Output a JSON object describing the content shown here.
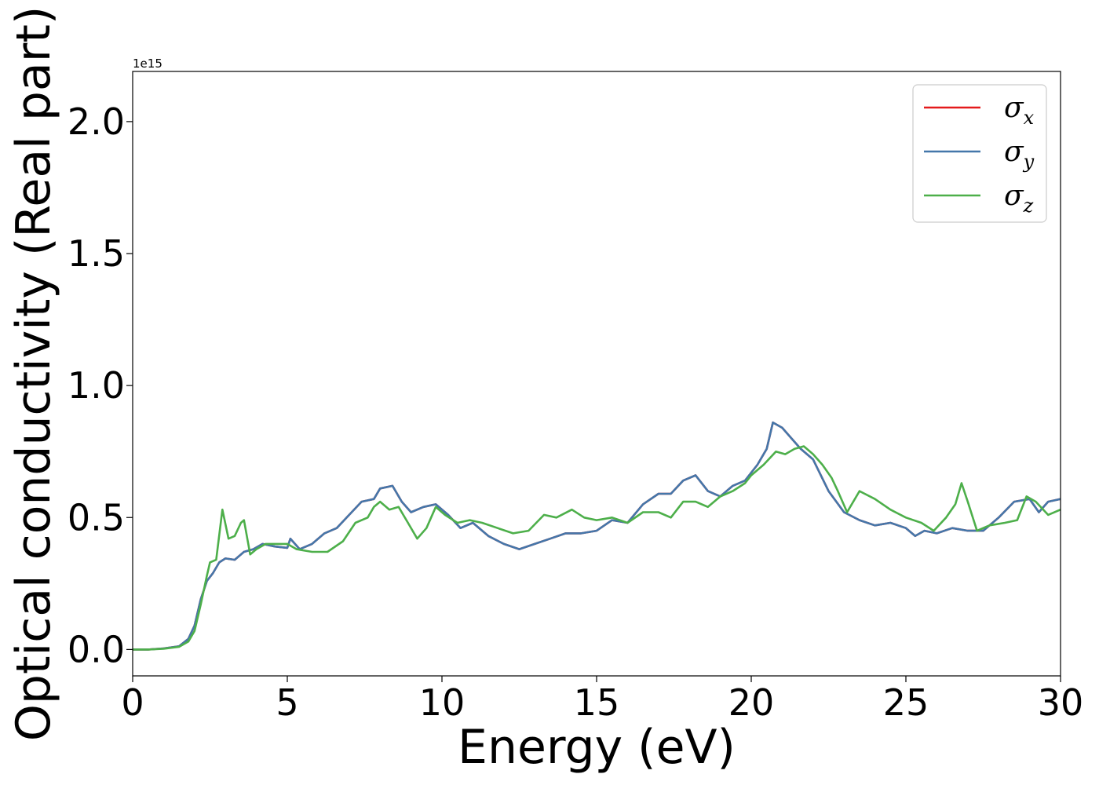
{
  "chart_data": {
    "type": "line",
    "xlabel": "Energy (eV)",
    "ylabel": "Optical conductivity (Real part)",
    "offset_text": "1e15",
    "xlim": [
      0,
      30
    ],
    "ylim": [
      -0.1,
      2.19
    ],
    "xticks": [
      0,
      5,
      10,
      15,
      20,
      25,
      30
    ],
    "xtick_labels": [
      "0",
      "5",
      "10",
      "15",
      "20",
      "25",
      "30"
    ],
    "yticks": [
      0.0,
      0.5,
      1.0,
      1.5,
      2.0
    ],
    "ytick_labels": [
      "0.0",
      "0.5",
      "1.0",
      "1.5",
      "2.0"
    ],
    "grid": false,
    "legend_position": "top-right",
    "series": [
      {
        "name": "σx",
        "symbol": "σ",
        "subscript": "x",
        "color": "#e41a1c",
        "x": [
          0,
          0.5,
          1.0,
          1.5,
          1.8,
          2.0,
          2.2,
          2.4,
          2.6,
          2.8,
          3.0,
          3.3,
          3.6,
          3.9,
          4.2,
          4.6,
          5.0,
          5.1,
          5.4,
          5.8,
          6.2,
          6.6,
          7.0,
          7.4,
          7.8,
          8.0,
          8.4,
          8.7,
          9.0,
          9.4,
          9.8,
          10.2,
          10.6,
          11.0,
          11.5,
          12.0,
          12.5,
          13.0,
          13.5,
          14.0,
          14.5,
          15.0,
          15.5,
          16.0,
          16.5,
          17.0,
          17.4,
          17.8,
          18.2,
          18.6,
          19.0,
          19.4,
          19.8,
          20.2,
          20.5,
          20.7,
          21.0,
          21.3,
          21.6,
          22.0,
          22.5,
          23.0,
          23.5,
          24.0,
          24.5,
          25.0,
          25.3,
          25.6,
          26.0,
          26.5,
          27.0,
          27.5,
          28.0,
          28.5,
          29.0,
          29.3,
          29.6,
          30.0
        ],
        "y": [
          0.0,
          0.0,
          0.004,
          0.012,
          0.04,
          0.09,
          0.19,
          0.26,
          0.29,
          0.33,
          0.345,
          0.34,
          0.37,
          0.38,
          0.4,
          0.39,
          0.385,
          0.42,
          0.38,
          0.4,
          0.44,
          0.46,
          0.51,
          0.56,
          0.57,
          0.61,
          0.62,
          0.56,
          0.52,
          0.54,
          0.55,
          0.51,
          0.46,
          0.48,
          0.43,
          0.4,
          0.38,
          0.4,
          0.42,
          0.44,
          0.44,
          0.45,
          0.49,
          0.48,
          0.55,
          0.59,
          0.59,
          0.64,
          0.66,
          0.6,
          0.58,
          0.62,
          0.64,
          0.7,
          0.76,
          0.86,
          0.84,
          0.8,
          0.76,
          0.72,
          0.6,
          0.52,
          0.49,
          0.47,
          0.48,
          0.46,
          0.43,
          0.45,
          0.44,
          0.46,
          0.45,
          0.45,
          0.5,
          0.56,
          0.57,
          0.52,
          0.56,
          0.57
        ]
      },
      {
        "name": "σy",
        "symbol": "σ",
        "subscript": "y",
        "color": "#4477aa",
        "x": [
          0,
          0.5,
          1.0,
          1.5,
          1.8,
          2.0,
          2.2,
          2.4,
          2.6,
          2.8,
          3.0,
          3.3,
          3.6,
          3.9,
          4.2,
          4.6,
          5.0,
          5.1,
          5.4,
          5.8,
          6.2,
          6.6,
          7.0,
          7.4,
          7.8,
          8.0,
          8.4,
          8.7,
          9.0,
          9.4,
          9.8,
          10.2,
          10.6,
          11.0,
          11.5,
          12.0,
          12.5,
          13.0,
          13.5,
          14.0,
          14.5,
          15.0,
          15.5,
          16.0,
          16.5,
          17.0,
          17.4,
          17.8,
          18.2,
          18.6,
          19.0,
          19.4,
          19.8,
          20.2,
          20.5,
          20.7,
          21.0,
          21.3,
          21.6,
          22.0,
          22.5,
          23.0,
          23.5,
          24.0,
          24.5,
          25.0,
          25.3,
          25.6,
          26.0,
          26.5,
          27.0,
          27.5,
          28.0,
          28.5,
          29.0,
          29.3,
          29.6,
          30.0
        ],
        "y": [
          0.0,
          0.0,
          0.004,
          0.012,
          0.04,
          0.09,
          0.19,
          0.26,
          0.29,
          0.33,
          0.345,
          0.34,
          0.37,
          0.38,
          0.4,
          0.39,
          0.385,
          0.42,
          0.38,
          0.4,
          0.44,
          0.46,
          0.51,
          0.56,
          0.57,
          0.61,
          0.62,
          0.56,
          0.52,
          0.54,
          0.55,
          0.51,
          0.46,
          0.48,
          0.43,
          0.4,
          0.38,
          0.4,
          0.42,
          0.44,
          0.44,
          0.45,
          0.49,
          0.48,
          0.55,
          0.59,
          0.59,
          0.64,
          0.66,
          0.6,
          0.58,
          0.62,
          0.64,
          0.7,
          0.76,
          0.86,
          0.84,
          0.8,
          0.76,
          0.72,
          0.6,
          0.52,
          0.49,
          0.47,
          0.48,
          0.46,
          0.43,
          0.45,
          0.44,
          0.46,
          0.45,
          0.45,
          0.5,
          0.56,
          0.57,
          0.52,
          0.56,
          0.57
        ]
      },
      {
        "name": "σz",
        "symbol": "σ",
        "subscript": "z",
        "color": "#4daf4a",
        "x": [
          0,
          0.5,
          1.0,
          1.5,
          1.8,
          2.0,
          2.2,
          2.4,
          2.5,
          2.7,
          2.9,
          3.1,
          3.3,
          3.5,
          3.6,
          3.8,
          4.0,
          4.3,
          4.7,
          5.0,
          5.3,
          5.8,
          6.3,
          6.8,
          7.2,
          7.6,
          7.8,
          8.0,
          8.3,
          8.6,
          8.9,
          9.2,
          9.5,
          9.8,
          10.1,
          10.5,
          10.9,
          11.3,
          11.8,
          12.3,
          12.8,
          13.3,
          13.7,
          14.2,
          14.6,
          15.0,
          15.5,
          16.0,
          16.5,
          17.0,
          17.4,
          17.8,
          18.2,
          18.6,
          19.0,
          19.4,
          19.8,
          20.0,
          20.4,
          20.8,
          21.1,
          21.4,
          21.7,
          22.0,
          22.3,
          22.6,
          22.8,
          23.1,
          23.5,
          24.0,
          24.5,
          25.0,
          25.5,
          25.9,
          26.3,
          26.6,
          26.8,
          27.0,
          27.3,
          27.7,
          28.2,
          28.6,
          28.9,
          29.2,
          29.6,
          30.0
        ],
        "y": [
          0.0,
          0.0,
          0.003,
          0.01,
          0.03,
          0.07,
          0.17,
          0.28,
          0.33,
          0.34,
          0.53,
          0.42,
          0.43,
          0.48,
          0.49,
          0.36,
          0.38,
          0.4,
          0.4,
          0.4,
          0.38,
          0.37,
          0.37,
          0.41,
          0.48,
          0.5,
          0.54,
          0.56,
          0.53,
          0.54,
          0.48,
          0.42,
          0.46,
          0.54,
          0.51,
          0.48,
          0.49,
          0.48,
          0.46,
          0.44,
          0.45,
          0.51,
          0.5,
          0.53,
          0.5,
          0.49,
          0.5,
          0.48,
          0.52,
          0.52,
          0.5,
          0.56,
          0.56,
          0.54,
          0.58,
          0.6,
          0.63,
          0.66,
          0.7,
          0.75,
          0.74,
          0.76,
          0.77,
          0.74,
          0.7,
          0.65,
          0.6,
          0.52,
          0.6,
          0.57,
          0.53,
          0.5,
          0.48,
          0.45,
          0.5,
          0.55,
          0.63,
          0.56,
          0.45,
          0.47,
          0.48,
          0.49,
          0.58,
          0.56,
          0.51,
          0.53
        ]
      }
    ]
  }
}
